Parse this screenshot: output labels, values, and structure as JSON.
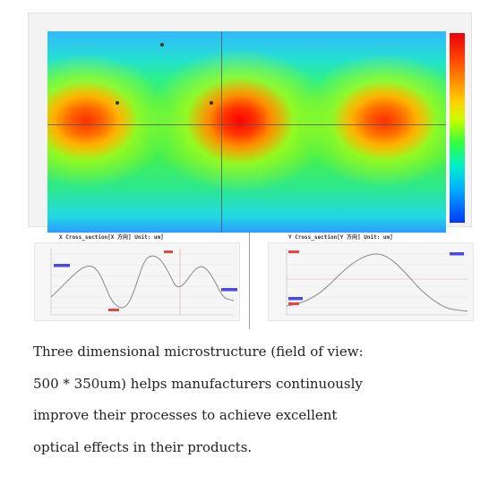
{
  "figure": {
    "x_section_title": "X Cross_section[X 方向] Unit: um]",
    "y_section_title": "Y Cross_section[Y 方向] Unit: um]",
    "colors": {
      "heat_low": "#0038ff",
      "heat_mid": "#40f050",
      "heat_high": "#ff0000",
      "profile_line": "#8a8a8a",
      "marker_red": "#e0464a",
      "marker_blue": "#4a4ae0"
    }
  },
  "caption": {
    "lines": [
      "Three dimensional microstructure (field of view:",
      "500 * 350um) helps manufacturers continuously",
      "improve their processes to achieve excellent",
      "optical effects in their products."
    ]
  }
}
